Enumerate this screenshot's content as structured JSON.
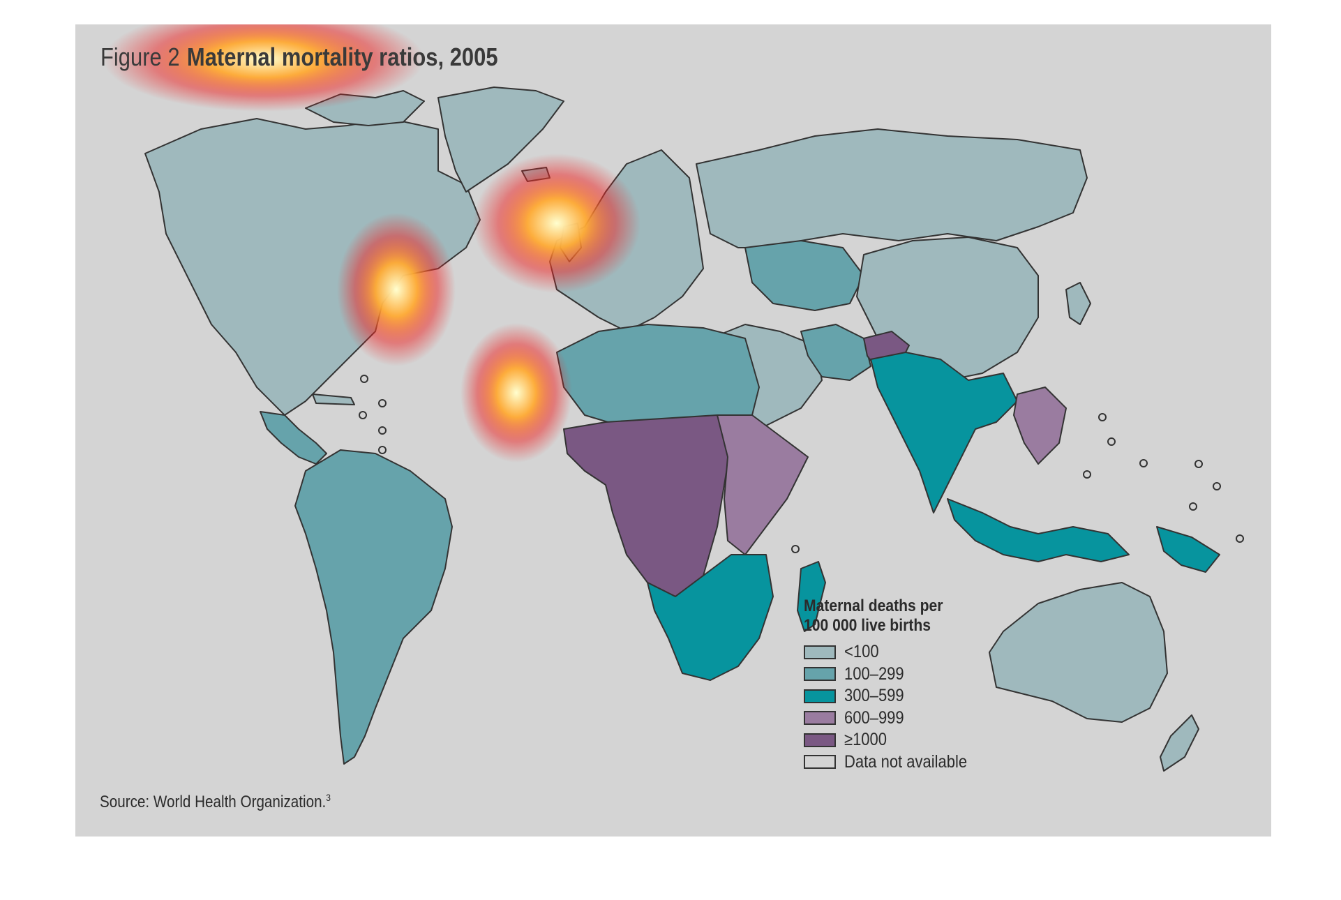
{
  "figure": {
    "label": "Figure 2",
    "title": "Maternal mortality ratios, 2005"
  },
  "legend": {
    "title_line1": "Maternal deaths per",
    "title_line2": "100 000 live births",
    "items": [
      {
        "label": "<100",
        "color": "#9fb9bd"
      },
      {
        "label": "100–299",
        "color": "#66a3ab"
      },
      {
        "label": "300–599",
        "color": "#07949e"
      },
      {
        "label": "600–999",
        "color": "#9a7ca0"
      },
      {
        "label": "≥1000",
        "color": "#7a5883"
      },
      {
        "label": "Data not available",
        "color": "#d4d4d4"
      }
    ]
  },
  "source": {
    "text": "Source: World Health Organization.",
    "note": "3"
  },
  "colors": {
    "background": "#d4d4d4",
    "border": "#333333",
    "heat_core": "#ffffd0",
    "heat_mid": "#ffaa33",
    "heat_outer": "#ee2222"
  },
  "regions": [
    {
      "name": "north-america",
      "category": "<100"
    },
    {
      "name": "greenland",
      "category": "<100"
    },
    {
      "name": "central-america",
      "category": "100–299"
    },
    {
      "name": "south-america",
      "category": "100–299"
    },
    {
      "name": "europe",
      "category": "<100"
    },
    {
      "name": "russia",
      "category": "<100"
    },
    {
      "name": "china",
      "category": "<100"
    },
    {
      "name": "north-africa",
      "category": "100–299"
    },
    {
      "name": "west-central-africa",
      "category": "≥1000"
    },
    {
      "name": "east-africa",
      "category": "600–999"
    },
    {
      "name": "southern-africa",
      "category": "300–599"
    },
    {
      "name": "south-asia",
      "category": "300–599"
    },
    {
      "name": "indonesia",
      "category": "300–599"
    },
    {
      "name": "australia",
      "category": "<100"
    }
  ]
}
